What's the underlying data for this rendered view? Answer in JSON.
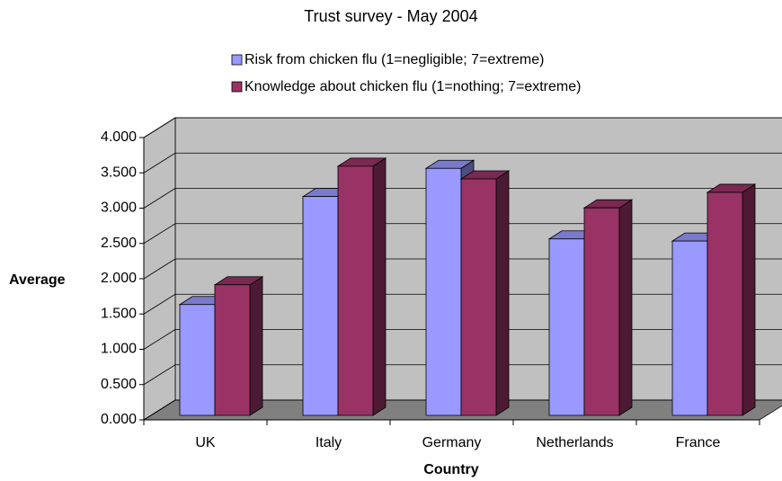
{
  "chart_data": {
    "type": "bar3d",
    "title": "Trust survey - May 2004",
    "x_label": "Country",
    "y_label": "Average",
    "categories": [
      "UK",
      "Italy",
      "Germany",
      "Netherlands",
      "France"
    ],
    "series": [
      {
        "name": "Risk from chicken flu (1=negligible; 7=extreme)",
        "color": "#9999ff",
        "values": [
          1.57,
          3.1,
          3.5,
          2.5,
          2.47
        ]
      },
      {
        "name": "Knowledge about chicken flu (1=nothing; 7=extreme)",
        "color": "#993366",
        "values": [
          1.85,
          3.53,
          3.35,
          2.94,
          3.16
        ]
      }
    ],
    "ylim": [
      0,
      4
    ],
    "yticks": [
      {
        "value": 0,
        "label": "0.000"
      },
      {
        "value": 0.5,
        "label": "0.500"
      },
      {
        "value": 1,
        "label": "1.000"
      },
      {
        "value": 1.5,
        "label": "1.500"
      },
      {
        "value": 2,
        "label": "2.000"
      },
      {
        "value": 2.5,
        "label": "2.500"
      },
      {
        "value": 3,
        "label": "3.000"
      },
      {
        "value": 3.5,
        "label": "3.500"
      },
      {
        "value": 4,
        "label": "4.000"
      }
    ],
    "grid": true
  }
}
